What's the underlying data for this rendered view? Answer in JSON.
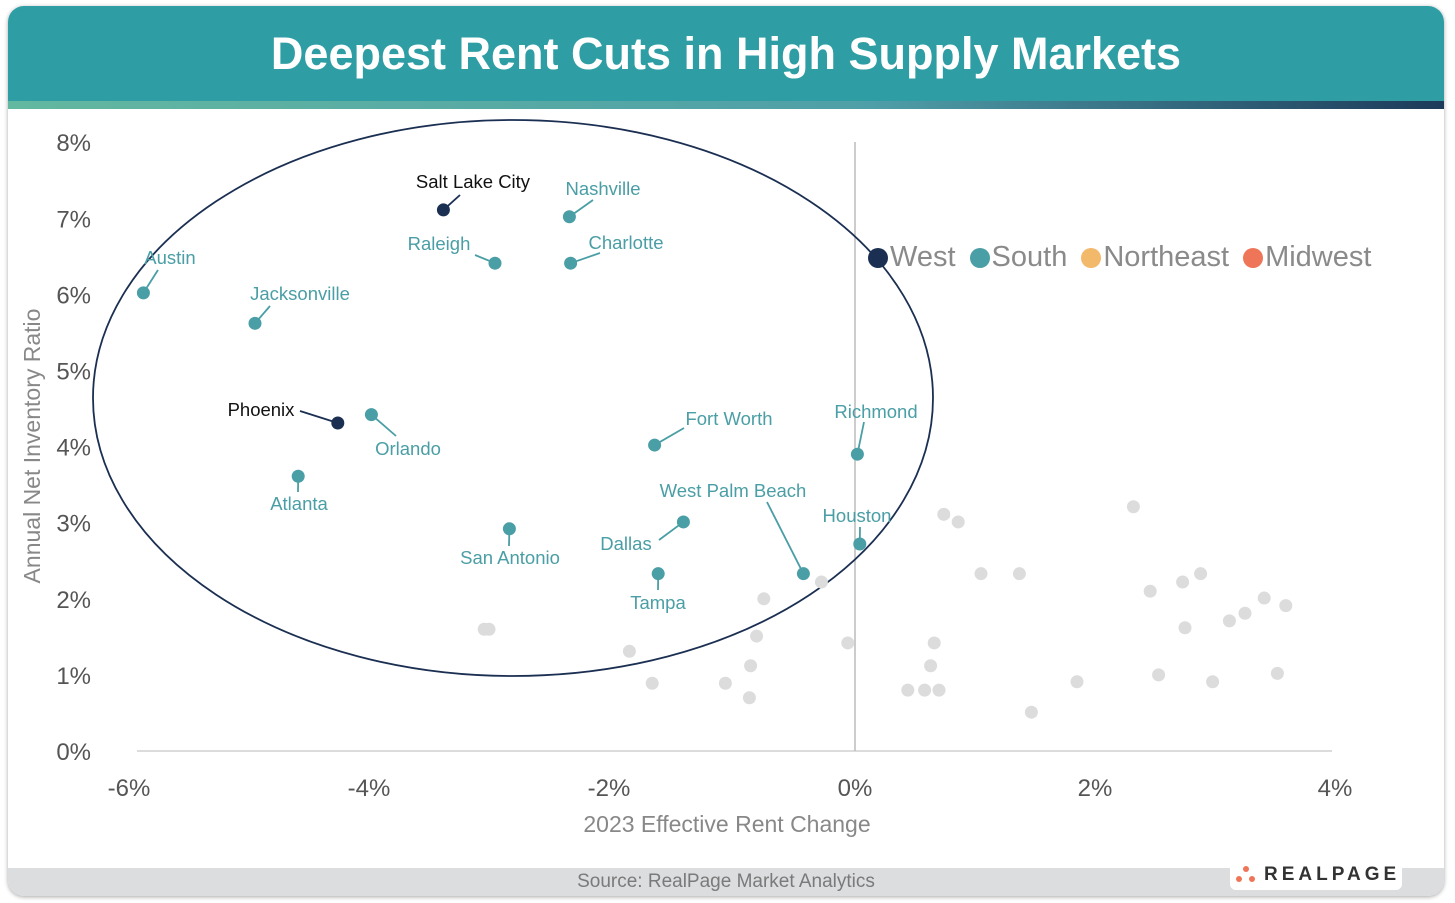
{
  "title": "Deepest Rent Cuts in High Supply Markets",
  "source": "Source: RealPage Market Analytics",
  "logo": "REALPAGE",
  "colors": {
    "West": "#1b2f52",
    "South": "#4a9ea5",
    "Northeast": "#f3b96a",
    "Midwest": "#ef7558",
    "Other": "#dcdcdc",
    "header": "#2e9ea4"
  },
  "chart_data": {
    "type": "scatter",
    "title": "Deepest Rent Cuts in High Supply Markets",
    "xlabel": "2023 Effective Rent Change",
    "ylabel": "Annual Net Inventory Ratio",
    "xlim": [
      -6,
      4
    ],
    "ylim": [
      0,
      8
    ],
    "x_ticks": [
      "-6%",
      "-4%",
      "-2%",
      "0%",
      "2%",
      "4%"
    ],
    "y_ticks": [
      "0%",
      "1%",
      "2%",
      "3%",
      "4%",
      "5%",
      "6%",
      "7%",
      "8%"
    ],
    "legend": [
      "West",
      "South",
      "Northeast",
      "Midwest"
    ],
    "legend_placement": "right",
    "grid": false,
    "labeled_points": [
      {
        "name": "Salt Lake City",
        "region": "West",
        "x": -3.43,
        "y": 7.11
      },
      {
        "name": "Nashville",
        "region": "South",
        "x": -2.38,
        "y": 7.02
      },
      {
        "name": "Raleigh",
        "region": "South",
        "x": -3.0,
        "y": 6.41
      },
      {
        "name": "Charlotte",
        "region": "South",
        "x": -2.37,
        "y": 6.41
      },
      {
        "name": "Austin",
        "region": "South",
        "x": -5.93,
        "y": 6.02
      },
      {
        "name": "Jacksonville",
        "region": "South",
        "x": -5.0,
        "y": 5.62
      },
      {
        "name": "Phoenix",
        "region": "West",
        "x": -4.31,
        "y": 4.31
      },
      {
        "name": "Orlando",
        "region": "South",
        "x": -4.03,
        "y": 4.42
      },
      {
        "name": "Atlanta",
        "region": "South",
        "x": -4.64,
        "y": 3.61
      },
      {
        "name": "Fort Worth",
        "region": "South",
        "x": -1.67,
        "y": 4.02
      },
      {
        "name": "Richmond",
        "region": "South",
        "x": 0.02,
        "y": 3.9
      },
      {
        "name": "West Palm Beach",
        "region": "South",
        "x": -0.43,
        "y": 2.33
      },
      {
        "name": "Houston",
        "region": "South",
        "x": 0.04,
        "y": 2.72
      },
      {
        "name": "Dallas",
        "region": "South",
        "x": -1.43,
        "y": 3.01
      },
      {
        "name": "San Antonio",
        "region": "South",
        "x": -2.88,
        "y": 2.92
      },
      {
        "name": "Tampa",
        "region": "South",
        "x": -1.64,
        "y": 2.33
      }
    ],
    "other_points": [
      [
        -3.09,
        1.6
      ],
      [
        -3.05,
        1.6
      ],
      [
        -1.88,
        1.31
      ],
      [
        -1.69,
        0.89
      ],
      [
        -1.08,
        0.89
      ],
      [
        -0.88,
        0.7
      ],
      [
        -0.87,
        1.12
      ],
      [
        -0.82,
        1.51
      ],
      [
        -0.76,
        2.0
      ],
      [
        -0.28,
        2.22
      ],
      [
        -0.06,
        1.42
      ],
      [
        0.44,
        0.8
      ],
      [
        0.58,
        0.8
      ],
      [
        0.7,
        0.8
      ],
      [
        0.63,
        1.12
      ],
      [
        0.66,
        1.42
      ],
      [
        0.74,
        3.11
      ],
      [
        0.86,
        3.01
      ],
      [
        1.05,
        2.33
      ],
      [
        1.37,
        2.33
      ],
      [
        1.47,
        0.51
      ],
      [
        1.85,
        0.91
      ],
      [
        2.32,
        3.21
      ],
      [
        2.46,
        2.1
      ],
      [
        2.53,
        1.0
      ],
      [
        2.73,
        2.22
      ],
      [
        2.75,
        1.62
      ],
      [
        2.88,
        2.33
      ],
      [
        2.98,
        0.91
      ],
      [
        3.12,
        1.71
      ],
      [
        3.25,
        1.81
      ],
      [
        3.41,
        2.01
      ],
      [
        3.52,
        1.02
      ],
      [
        3.59,
        1.91
      ]
    ]
  }
}
